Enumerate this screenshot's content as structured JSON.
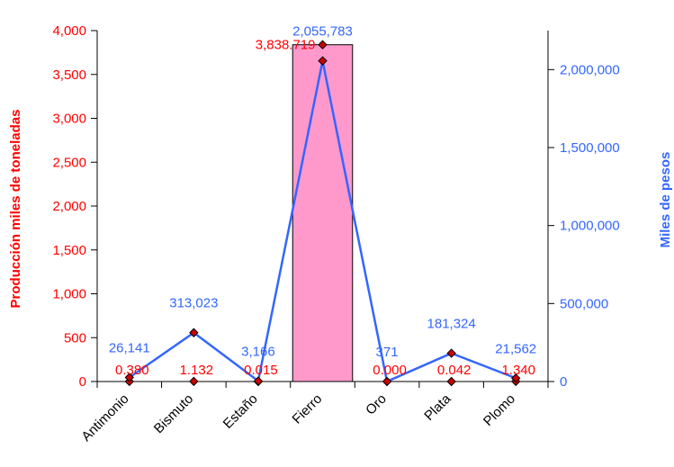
{
  "chart_data": {
    "type": "bar",
    "categories": [
      "Antimonio",
      "Bismuto",
      "Estaño",
      "Fierro",
      "Oro",
      "Plata",
      "Plomo"
    ],
    "series": [
      {
        "axis": "left",
        "chart_type": "bar",
        "values": [
          0.38,
          1.132,
          0.015,
          3838.719,
          0.0,
          0.042,
          1.34
        ],
        "labels": [
          "0.380",
          "1.132",
          "0.015",
          "3,838.719",
          "0.000",
          "0.042",
          "1.340"
        ],
        "color": "#ff99cc",
        "label_color": "#ff0000"
      },
      {
        "axis": "right",
        "chart_type": "line",
        "values": [
          26141,
          313023,
          3166,
          2055783,
          371,
          181324,
          21562
        ],
        "labels": [
          "26,141",
          "313,023",
          "3,166",
          "2,055,783",
          "371",
          "181,324",
          "21,562"
        ],
        "color": "#3366ff",
        "label_color": "#3366ff",
        "marker_color": "#cc0000"
      }
    ],
    "ylabel_left": "Producción miles de toneladas",
    "ylabel_right": "Miles de pesos",
    "ylim_left": [
      0,
      4000
    ],
    "ylim_right": [
      0,
      2055783
    ],
    "yticks_left": [
      "0",
      "500",
      "1,000",
      "1,500",
      "2,000",
      "2,500",
      "3,000",
      "3,500",
      "4,000"
    ],
    "yticks_right": [
      "0",
      "500,000",
      "1,000,000",
      "1,500,000",
      "2,000,000"
    ],
    "grid": false,
    "left_axis_color": "#ff0000",
    "right_axis_color": "#3366ff"
  }
}
